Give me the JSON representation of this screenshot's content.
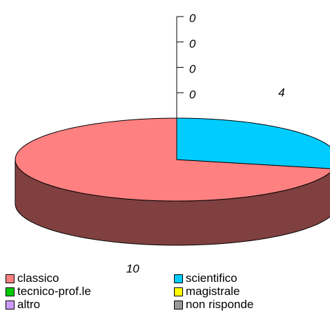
{
  "chart_data": {
    "type": "pie",
    "style": "3d",
    "categories": [
      "classico",
      "scientifico",
      "tecnico-prof.le",
      "magistrale",
      "altro",
      "non risponde"
    ],
    "values": [
      10,
      4,
      0,
      0,
      0,
      0
    ],
    "colors": [
      "#ff8080",
      "#00ccff",
      "#00cc00",
      "#ffff00",
      "#cc99ff",
      "#999999"
    ],
    "slice_labels": [
      "10",
      "4",
      "0",
      "0",
      "0",
      "0"
    ],
    "legend_position": "bottom"
  }
}
